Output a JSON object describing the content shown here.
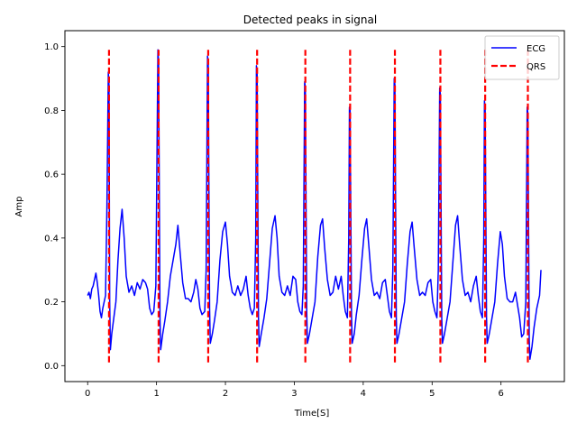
{
  "chart_data": {
    "type": "line",
    "title": "Detected peaks in signal",
    "xlabel": "Time[S]",
    "ylabel": "Amp",
    "xlim": [
      -0.33,
      6.92
    ],
    "ylim": [
      -0.05,
      1.05
    ],
    "xticks": [
      0,
      1,
      2,
      3,
      4,
      5,
      6
    ],
    "xtick_labels": [
      "0",
      "1",
      "2",
      "3",
      "4",
      "5",
      "6"
    ],
    "yticks": [
      0.0,
      0.2,
      0.4,
      0.6,
      0.8,
      1.0
    ],
    "ytick_labels": [
      "0.0",
      "0.2",
      "0.4",
      "0.6",
      "0.8",
      "1.0"
    ],
    "grid": false,
    "legend_position": "top-right",
    "series": [
      {
        "name": "ECG",
        "style": "solid",
        "color": "#0000ff",
        "points": [
          [
            0.0,
            0.22
          ],
          [
            0.02,
            0.23
          ],
          [
            0.04,
            0.21
          ],
          [
            0.06,
            0.24
          ],
          [
            0.08,
            0.25
          ],
          [
            0.1,
            0.27
          ],
          [
            0.12,
            0.29
          ],
          [
            0.14,
            0.26
          ],
          [
            0.16,
            0.22
          ],
          [
            0.18,
            0.17
          ],
          [
            0.2,
            0.15
          ],
          [
            0.22,
            0.18
          ],
          [
            0.24,
            0.2
          ],
          [
            0.26,
            0.22
          ],
          [
            0.28,
            0.5
          ],
          [
            0.3,
            0.92
          ],
          [
            0.31,
            0.88
          ],
          [
            0.32,
            0.2
          ],
          [
            0.33,
            0.05
          ],
          [
            0.35,
            0.1
          ],
          [
            0.38,
            0.15
          ],
          [
            0.41,
            0.2
          ],
          [
            0.44,
            0.33
          ],
          [
            0.47,
            0.43
          ],
          [
            0.5,
            0.49
          ],
          [
            0.53,
            0.4
          ],
          [
            0.56,
            0.28
          ],
          [
            0.6,
            0.23
          ],
          [
            0.64,
            0.25
          ],
          [
            0.68,
            0.22
          ],
          [
            0.72,
            0.26
          ],
          [
            0.76,
            0.24
          ],
          [
            0.8,
            0.27
          ],
          [
            0.84,
            0.26
          ],
          [
            0.87,
            0.24
          ],
          [
            0.9,
            0.18
          ],
          [
            0.93,
            0.16
          ],
          [
            0.96,
            0.17
          ],
          [
            0.99,
            0.25
          ],
          [
            1.02,
            0.99
          ],
          [
            1.03,
            0.95
          ],
          [
            1.05,
            0.15
          ],
          [
            1.06,
            0.05
          ],
          [
            1.09,
            0.1
          ],
          [
            1.12,
            0.14
          ],
          [
            1.16,
            0.2
          ],
          [
            1.2,
            0.28
          ],
          [
            1.24,
            0.33
          ],
          [
            1.28,
            0.38
          ],
          [
            1.31,
            0.44
          ],
          [
            1.34,
            0.36
          ],
          [
            1.38,
            0.26
          ],
          [
            1.42,
            0.21
          ],
          [
            1.46,
            0.21
          ],
          [
            1.5,
            0.2
          ],
          [
            1.54,
            0.23
          ],
          [
            1.57,
            0.27
          ],
          [
            1.6,
            0.24
          ],
          [
            1.63,
            0.18
          ],
          [
            1.66,
            0.16
          ],
          [
            1.7,
            0.17
          ],
          [
            1.72,
            0.3
          ],
          [
            1.74,
            0.97
          ],
          [
            1.75,
            0.95
          ],
          [
            1.77,
            0.18
          ],
          [
            1.78,
            0.07
          ],
          [
            1.81,
            0.1
          ],
          [
            1.84,
            0.14
          ],
          [
            1.88,
            0.2
          ],
          [
            1.92,
            0.33
          ],
          [
            1.96,
            0.42
          ],
          [
            2.0,
            0.45
          ],
          [
            2.03,
            0.38
          ],
          [
            2.06,
            0.28
          ],
          [
            2.1,
            0.23
          ],
          [
            2.14,
            0.22
          ],
          [
            2.18,
            0.25
          ],
          [
            2.22,
            0.22
          ],
          [
            2.26,
            0.24
          ],
          [
            2.3,
            0.28
          ],
          [
            2.33,
            0.22
          ],
          [
            2.36,
            0.18
          ],
          [
            2.39,
            0.16
          ],
          [
            2.42,
            0.18
          ],
          [
            2.44,
            0.4
          ],
          [
            2.45,
            0.94
          ],
          [
            2.46,
            0.92
          ],
          [
            2.48,
            0.15
          ],
          [
            2.49,
            0.06
          ],
          [
            2.52,
            0.1
          ],
          [
            2.56,
            0.15
          ],
          [
            2.6,
            0.21
          ],
          [
            2.64,
            0.32
          ],
          [
            2.68,
            0.43
          ],
          [
            2.72,
            0.47
          ],
          [
            2.75,
            0.4
          ],
          [
            2.78,
            0.28
          ],
          [
            2.82,
            0.23
          ],
          [
            2.86,
            0.22
          ],
          [
            2.9,
            0.25
          ],
          [
            2.94,
            0.22
          ],
          [
            2.98,
            0.28
          ],
          [
            3.02,
            0.27
          ],
          [
            3.05,
            0.2
          ],
          [
            3.08,
            0.17
          ],
          [
            3.11,
            0.16
          ],
          [
            3.13,
            0.25
          ],
          [
            3.15,
            0.89
          ],
          [
            3.16,
            0.87
          ],
          [
            3.18,
            0.17
          ],
          [
            3.19,
            0.07
          ],
          [
            3.22,
            0.1
          ],
          [
            3.26,
            0.15
          ],
          [
            3.3,
            0.2
          ],
          [
            3.34,
            0.34
          ],
          [
            3.38,
            0.44
          ],
          [
            3.41,
            0.46
          ],
          [
            3.44,
            0.37
          ],
          [
            3.48,
            0.27
          ],
          [
            3.52,
            0.22
          ],
          [
            3.56,
            0.23
          ],
          [
            3.6,
            0.28
          ],
          [
            3.64,
            0.24
          ],
          [
            3.68,
            0.28
          ],
          [
            3.71,
            0.22
          ],
          [
            3.74,
            0.17
          ],
          [
            3.77,
            0.15
          ],
          [
            3.79,
            0.4
          ],
          [
            3.8,
            0.81
          ],
          [
            3.81,
            0.8
          ],
          [
            3.83,
            0.16
          ],
          [
            3.84,
            0.07
          ],
          [
            3.87,
            0.1
          ],
          [
            3.9,
            0.16
          ],
          [
            3.94,
            0.22
          ],
          [
            3.98,
            0.33
          ],
          [
            4.02,
            0.43
          ],
          [
            4.05,
            0.46
          ],
          [
            4.08,
            0.38
          ],
          [
            4.12,
            0.27
          ],
          [
            4.16,
            0.22
          ],
          [
            4.2,
            0.23
          ],
          [
            4.24,
            0.21
          ],
          [
            4.28,
            0.26
          ],
          [
            4.32,
            0.27
          ],
          [
            4.35,
            0.22
          ],
          [
            4.38,
            0.17
          ],
          [
            4.41,
            0.15
          ],
          [
            4.43,
            0.3
          ],
          [
            4.45,
            0.9
          ],
          [
            4.46,
            0.88
          ],
          [
            4.48,
            0.15
          ],
          [
            4.49,
            0.07
          ],
          [
            4.52,
            0.1
          ],
          [
            4.56,
            0.15
          ],
          [
            4.6,
            0.2
          ],
          [
            4.64,
            0.32
          ],
          [
            4.68,
            0.42
          ],
          [
            4.71,
            0.45
          ],
          [
            4.74,
            0.37
          ],
          [
            4.78,
            0.27
          ],
          [
            4.82,
            0.22
          ],
          [
            4.86,
            0.23
          ],
          [
            4.9,
            0.22
          ],
          [
            4.94,
            0.26
          ],
          [
            4.98,
            0.27
          ],
          [
            5.01,
            0.2
          ],
          [
            5.04,
            0.17
          ],
          [
            5.07,
            0.15
          ],
          [
            5.09,
            0.3
          ],
          [
            5.11,
            0.87
          ],
          [
            5.12,
            0.85
          ],
          [
            5.14,
            0.15
          ],
          [
            5.15,
            0.07
          ],
          [
            5.18,
            0.1
          ],
          [
            5.22,
            0.15
          ],
          [
            5.26,
            0.2
          ],
          [
            5.3,
            0.32
          ],
          [
            5.34,
            0.44
          ],
          [
            5.37,
            0.47
          ],
          [
            5.4,
            0.38
          ],
          [
            5.44,
            0.27
          ],
          [
            5.48,
            0.22
          ],
          [
            5.52,
            0.23
          ],
          [
            5.56,
            0.2
          ],
          [
            5.6,
            0.25
          ],
          [
            5.64,
            0.28
          ],
          [
            5.67,
            0.22
          ],
          [
            5.7,
            0.17
          ],
          [
            5.73,
            0.15
          ],
          [
            5.75,
            0.4
          ],
          [
            5.76,
            0.83
          ],
          [
            5.77,
            0.8
          ],
          [
            5.79,
            0.15
          ],
          [
            5.8,
            0.07
          ],
          [
            5.83,
            0.1
          ],
          [
            5.87,
            0.15
          ],
          [
            5.91,
            0.2
          ],
          [
            5.95,
            0.32
          ],
          [
            5.99,
            0.42
          ],
          [
            6.02,
            0.38
          ],
          [
            6.05,
            0.28
          ],
          [
            6.09,
            0.21
          ],
          [
            6.13,
            0.2
          ],
          [
            6.17,
            0.2
          ],
          [
            6.21,
            0.23
          ],
          [
            6.24,
            0.19
          ],
          [
            6.27,
            0.15
          ],
          [
            6.3,
            0.09
          ],
          [
            6.33,
            0.1
          ],
          [
            6.36,
            0.2
          ],
          [
            6.38,
            0.81
          ],
          [
            6.39,
            0.79
          ],
          [
            6.41,
            0.08
          ],
          [
            6.42,
            0.02
          ],
          [
            6.45,
            0.06
          ],
          [
            6.48,
            0.12
          ],
          [
            6.52,
            0.18
          ],
          [
            6.56,
            0.22
          ],
          [
            6.58,
            0.3
          ]
        ]
      },
      {
        "name": "QRS",
        "style": "dashed",
        "color": "#ff0000",
        "peak_times": [
          0.31,
          1.03,
          1.75,
          2.46,
          3.16,
          3.81,
          4.46,
          5.12,
          5.77,
          6.39
        ],
        "y_range": [
          0.01,
          0.99
        ]
      }
    ]
  }
}
